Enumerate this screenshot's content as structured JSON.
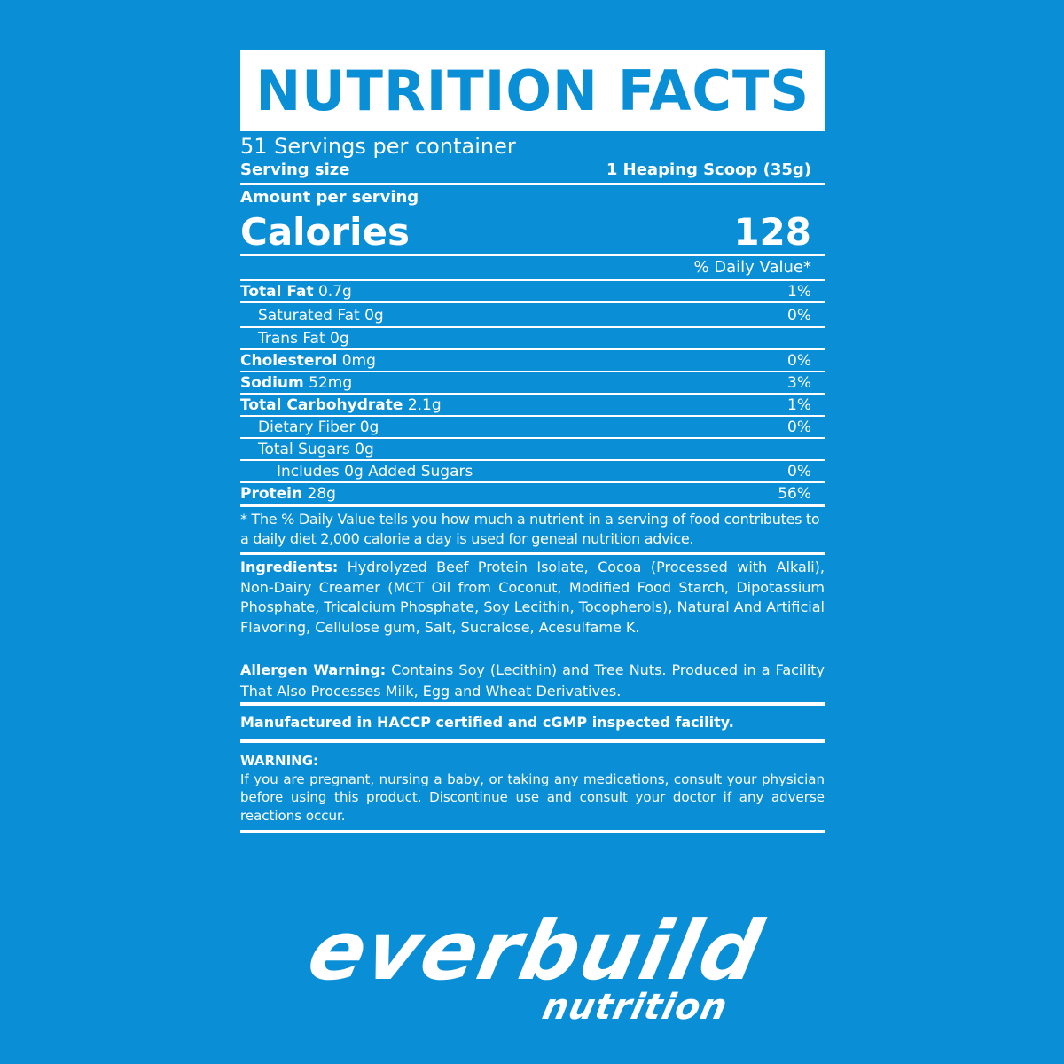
{
  "header": {
    "title": "NUTRITION FACTS"
  },
  "servings_per_container": "51 Servings per container",
  "serving_size": {
    "label": "Serving size",
    "value": "1 Heaping Scoop (35g)"
  },
  "amount_per_serving": "Amount per serving",
  "calories": {
    "label": "Calories",
    "value": "128"
  },
  "daily_value_header": "% Daily Value*",
  "nutrients": [
    {
      "name": "Total Fat",
      "amount": "0.7g",
      "dv": "1%"
    },
    {
      "name": "Saturated Fat",
      "amount": "0g",
      "dv": "0%"
    },
    {
      "name": "Trans Fat",
      "amount": "0g",
      "dv": ""
    },
    {
      "name": "Cholesterol",
      "amount": "0mg",
      "dv": "0%"
    },
    {
      "name": "Sodium",
      "amount": "52mg",
      "dv": "3%"
    },
    {
      "name": "Total Carbohydrate",
      "amount": "2.1g",
      "dv": "1%"
    },
    {
      "name": "Dietary Fiber",
      "amount": "0g",
      "dv": "0%"
    },
    {
      "name": "Total Sugars",
      "amount": "0g",
      "dv": ""
    },
    {
      "name": "Includes 0g Added Sugars",
      "amount": "",
      "dv": "0%"
    },
    {
      "name": "Protein",
      "amount": "28g",
      "dv": "56%"
    }
  ],
  "footnote": "* The % Daily Value tells you how much a nutrient in a serving of food contributes to a daily diet 2,000 calorie a day is used for geneal nutrition advice.",
  "ingredients": {
    "label": "Ingredients:",
    "text": "Hydrolyzed Beef Protein Isolate, Cocoa (Processed with Alkali), Non-Dairy Creamer (MCT Oil from Coconut, Modified Food Starch, Dipotassium Phosphate, Tricalcium Phosphate, Soy Lecithin, Tocopherols), Natural And Artificial Flavoring, Cellulose gum, Salt, Sucralose, Acesulfame K."
  },
  "allergen": {
    "label": "Allergen Warning:",
    "text": "Contains Soy (Lecithin) and Tree Nuts. Produced in a Facility That Also Processes Milk, Egg and Wheat Derivatives."
  },
  "manufactured": "Manufactured in HACCP certified and cGMP inspected facility.",
  "warning": {
    "label": "WARNING:",
    "text": "If you are pregnant, nursing a baby, or taking any medications, consult your physician before using this product. Discontinue use and consult your doctor if any adverse reactions occur."
  },
  "brand": {
    "name": "everbuild",
    "sub": "nutrition"
  },
  "colors": {
    "background": "#0a8fd6",
    "text": "#ffffff"
  }
}
